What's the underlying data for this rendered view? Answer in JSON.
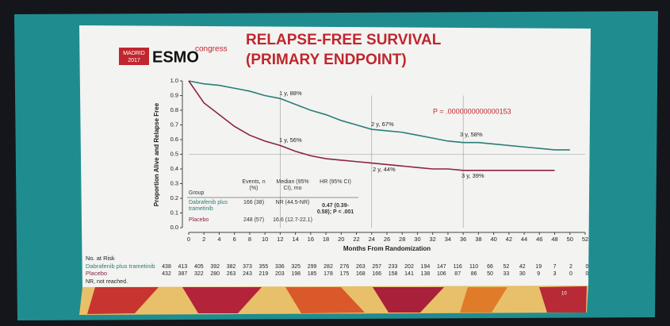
{
  "header": {
    "city": "MADRID",
    "year": "2017",
    "brand": "ESMO",
    "suffix": "congress",
    "title_lines": [
      "RELAPSE-FREE SURVIVAL",
      "(PRIMARY ENDPOINT)"
    ]
  },
  "chart_data": {
    "type": "line",
    "ylabel": "Proportion Alive and Relapse Free",
    "xlabel": "Months From Randomization",
    "x": [
      0,
      2,
      4,
      6,
      8,
      10,
      12,
      14,
      16,
      18,
      20,
      22,
      24,
      26,
      28,
      30,
      32,
      34,
      36,
      38,
      40,
      42,
      44,
      46,
      48,
      50
    ],
    "series": [
      {
        "name": "Dabrafenib plus trametinib",
        "color": "#2b7d78",
        "values": [
          1.0,
          0.98,
          0.97,
          0.95,
          0.93,
          0.9,
          0.88,
          0.84,
          0.8,
          0.77,
          0.73,
          0.7,
          0.67,
          0.66,
          0.65,
          0.63,
          0.61,
          0.59,
          0.58,
          0.58,
          0.57,
          0.56,
          0.55,
          0.54,
          0.53,
          0.53
        ]
      },
      {
        "name": "Placebo",
        "color": "#8c2245",
        "values": [
          1.0,
          0.85,
          0.77,
          0.69,
          0.63,
          0.59,
          0.56,
          0.52,
          0.49,
          0.47,
          0.46,
          0.45,
          0.44,
          0.43,
          0.42,
          0.41,
          0.4,
          0.4,
          0.39,
          0.39,
          0.39,
          0.39,
          0.39,
          0.39,
          0.39,
          null
        ]
      }
    ],
    "xlim": [
      0,
      52
    ],
    "ylim": [
      0,
      1
    ],
    "xticks": [
      0,
      2,
      4,
      6,
      8,
      10,
      12,
      14,
      16,
      18,
      20,
      22,
      24,
      26,
      28,
      30,
      32,
      34,
      36,
      38,
      40,
      42,
      44,
      46,
      48,
      50,
      52
    ],
    "yticks": [
      {
        "value": 0,
        "label": "0.0"
      },
      0.1,
      0.2,
      0.3,
      0.4,
      0.5,
      0.6,
      0.7,
      0.8,
      0.9,
      {
        "value": 1,
        "label": "1.0"
      }
    ],
    "reference_x": [
      12,
      24,
      36
    ],
    "reference_y": 0.5,
    "annotations": [
      "1 y, 88%",
      "2 y, 67%",
      "3 y, 58%",
      "1 y, 56%",
      "2 y, 44%",
      "3 y, 39%"
    ],
    "p_value": "P = .0000000000000153",
    "summary_table": {
      "headers": [
        "Group",
        "Events, n (%)",
        "Median (95% CI), mo",
        "HR (95% CI)"
      ],
      "rows": [
        [
          "Dabrafenib plus trametinib",
          "166 (38)",
          "NR (44.5-NR)"
        ],
        [
          "Placebo",
          "248 (57)",
          "16.6 (12.7-22.1)"
        ]
      ],
      "hr": "0.47 (0.39-0.58); P < .001"
    },
    "risk_table": {
      "title": "No. at Risk",
      "counts": [
        [
          438,
          413,
          405,
          392,
          382,
          373,
          355,
          336,
          325,
          299,
          282,
          276,
          263,
          257,
          233,
          202,
          194,
          147,
          116,
          110,
          66,
          52,
          42,
          19,
          7,
          2,
          0
        ],
        [
          432,
          387,
          322,
          280,
          263,
          243,
          219,
          203,
          198,
          185,
          178,
          175,
          168,
          166,
          158,
          141,
          138,
          106,
          87,
          86,
          50,
          33,
          30,
          9,
          3,
          0,
          0
        ]
      ]
    }
  },
  "footnote": "NR, not reached.",
  "slide_number": "10"
}
